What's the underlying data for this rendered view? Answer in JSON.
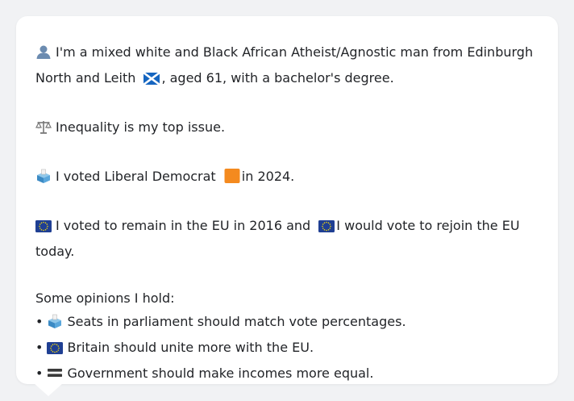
{
  "profile": {
    "intro_prefix": "I'm a mixed white and Black African Atheist/Agnostic man from Edinburgh North and Leith",
    "intro_suffix": ", aged 61, with a bachelor's degree.",
    "issue": "Inequality is my top issue.",
    "vote_prefix": "I voted Liberal Democrat",
    "vote_suffix": "in 2024.",
    "eu_part1": "I voted to remain in the EU in 2016 and",
    "eu_part2": "I would vote to rejoin the EU today."
  },
  "opinions": {
    "heading": "Some opinions I hold:",
    "bullet": "•",
    "items": [
      {
        "icon": "ballot-box-icon",
        "text": "Seats in parliament should match vote percentages."
      },
      {
        "icon": "eu-flag-icon",
        "text": "Britain should unite more with the EU."
      },
      {
        "icon": "equals-icon",
        "text": "Government should make incomes more equal."
      }
    ]
  },
  "colors": {
    "card_background": "#ffffff",
    "page_background": "#f1f2f4",
    "text": "#222428",
    "lib_dem_orange": "#f48a1f",
    "eu_blue": "#1f3f93",
    "scotland_blue": "#1565c0"
  }
}
